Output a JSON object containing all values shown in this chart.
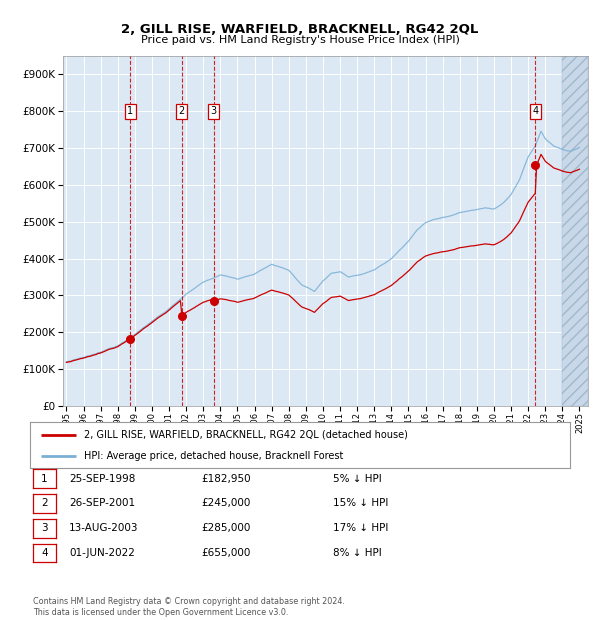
{
  "title": "2, GILL RISE, WARFIELD, BRACKNELL, RG42 2QL",
  "subtitle": "Price paid vs. HM Land Registry's House Price Index (HPI)",
  "background_color": "#dce9f5",
  "plot_bg_color": "#dce9f5",
  "grid_color": "#ffffff",
  "red_line_color": "#cc0000",
  "blue_line_color": "#7bafd4",
  "sale_dot_color": "#cc0000",
  "vline_color": "#cc0000",
  "label_box_edge": "#cc0000",
  "sale_dates": [
    1998.73,
    2001.73,
    2003.61,
    2022.42
  ],
  "sale_prices": [
    182950,
    245000,
    285000,
    655000
  ],
  "sale_labels": [
    "1",
    "2",
    "3",
    "4"
  ],
  "xmin": 1994.8,
  "xmax": 2025.5,
  "ymin": 0,
  "ymax": 950000,
  "yticks": [
    0,
    100000,
    200000,
    300000,
    400000,
    500000,
    600000,
    700000,
    800000,
    900000
  ],
  "ytick_labels": [
    "£0",
    "£100K",
    "£200K",
    "£300K",
    "£400K",
    "£500K",
    "£600K",
    "£700K",
    "£800K",
    "£900K"
  ],
  "xticks": [
    1995,
    1996,
    1997,
    1998,
    1999,
    2000,
    2001,
    2002,
    2003,
    2004,
    2005,
    2006,
    2007,
    2008,
    2009,
    2010,
    2011,
    2012,
    2013,
    2014,
    2015,
    2016,
    2017,
    2018,
    2019,
    2020,
    2021,
    2022,
    2023,
    2024,
    2025
  ],
  "hatch_start": 2024.0,
  "legend_entries": [
    "2, GILL RISE, WARFIELD, BRACKNELL, RG42 2QL (detached house)",
    "HPI: Average price, detached house, Bracknell Forest"
  ],
  "table_data": [
    [
      "1",
      "25-SEP-1998",
      "£182,950",
      "5% ↓ HPI"
    ],
    [
      "2",
      "26-SEP-2001",
      "£245,000",
      "15% ↓ HPI"
    ],
    [
      "3",
      "13-AUG-2003",
      "£285,000",
      "17% ↓ HPI"
    ],
    [
      "4",
      "01-JUN-2022",
      "£655,000",
      "8% ↓ HPI"
    ]
  ],
  "footnote": "Contains HM Land Registry data © Crown copyright and database right 2024.\nThis data is licensed under the Open Government Licence v3.0."
}
